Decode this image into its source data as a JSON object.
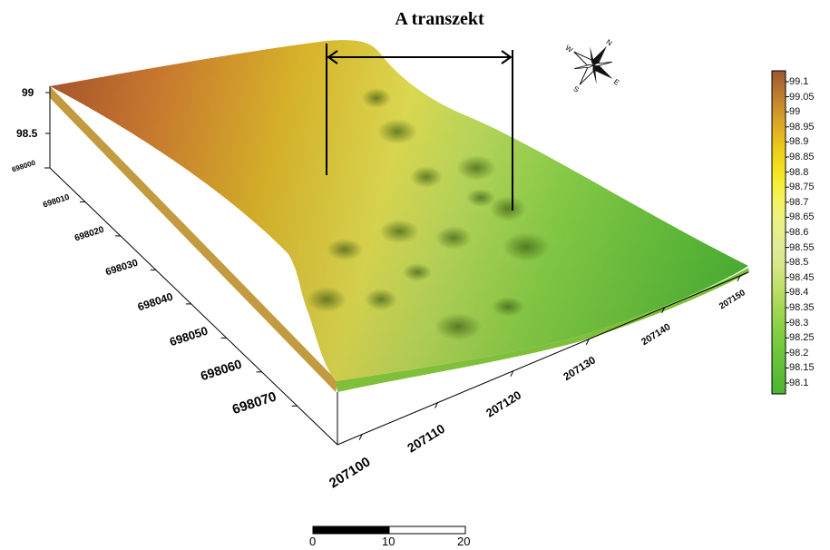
{
  "title": "A transzekt",
  "z_axis": {
    "ticks": [
      "99",
      "98.5"
    ]
  },
  "y_axis": {
    "ticks": [
      "698000",
      "698010",
      "698020",
      "698030",
      "698040",
      "698050",
      "698060",
      "698070"
    ]
  },
  "x_axis": {
    "ticks": [
      "207100",
      "207110",
      "207120",
      "207130",
      "207140",
      "207150"
    ]
  },
  "legend": {
    "labels": [
      "99.1",
      "99.05",
      "99",
      "98.95",
      "98.9",
      "98.85",
      "98.8",
      "98.75",
      "98.7",
      "98.65",
      "98.6",
      "98.55",
      "98.5",
      "98.45",
      "98.4",
      "98.35",
      "98.3",
      "98.25",
      "98.2",
      "98.15",
      "98.1"
    ],
    "colors": [
      "#9c5a30",
      "#b26f30",
      "#c58a2c",
      "#d6a228",
      "#e3b91f",
      "#ecd018",
      "#f2e020",
      "#f6ee36",
      "#f4f25e",
      "#eef27e",
      "#e6ef8c",
      "#e0eb96",
      "#d8e88a",
      "#c6e272",
      "#b2dc5e",
      "#9cd650",
      "#88cf46",
      "#76c93e",
      "#66c238",
      "#58bb34",
      "#4cb430"
    ]
  },
  "scale_bar": {
    "labels": [
      "0",
      "10",
      "20"
    ]
  },
  "compass": {
    "icon": "compass-rose-icon",
    "letters": [
      "N",
      "W",
      "E",
      "S"
    ]
  }
}
